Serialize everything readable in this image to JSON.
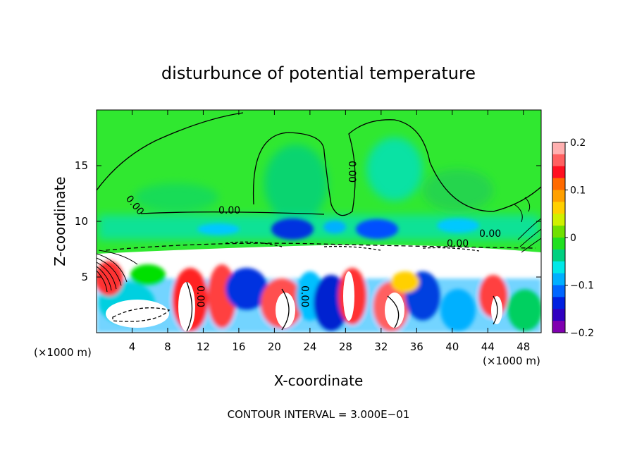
{
  "chart_data": {
    "type": "heatmap",
    "title": "disturbunce of potential temperature",
    "xlabel": "X-coordinate",
    "ylabel": "Z-coordinate",
    "x_unit": "(×1000 m)",
    "x_unit_right": "(×1000 m)",
    "xlim": [
      0,
      50
    ],
    "ylim": [
      0,
      20
    ],
    "x_ticks": [
      4,
      8,
      12,
      16,
      20,
      24,
      28,
      32,
      36,
      40,
      44,
      48
    ],
    "y_ticks": [
      5,
      10,
      15
    ],
    "colorbar": {
      "range": [
        -0.2,
        0.2
      ],
      "tick_values": [
        0.2,
        0.1,
        0,
        -0.1,
        -0.2
      ],
      "tick_labels": [
        "0.2",
        "0.1",
        "0",
        "−0.1",
        "−0.2"
      ],
      "colors": [
        "#ffb0b0",
        "#ff6060",
        "#ff1020",
        "#ff6a00",
        "#ffa000",
        "#ffd000",
        "#d0f000",
        "#70e000",
        "#20e020",
        "#00d080",
        "#00e8e8",
        "#00b0ff",
        "#0066ff",
        "#0020e0",
        "#3000c0",
        "#8000b0"
      ]
    },
    "contour_labels": [
      "0.00",
      "0.00",
      "0.00",
      "0.00",
      "0.00",
      "0.00",
      "0.00"
    ],
    "footer": "CONTOUR INTERVAL = 3.000E−01",
    "grid": false,
    "legend": "right"
  }
}
